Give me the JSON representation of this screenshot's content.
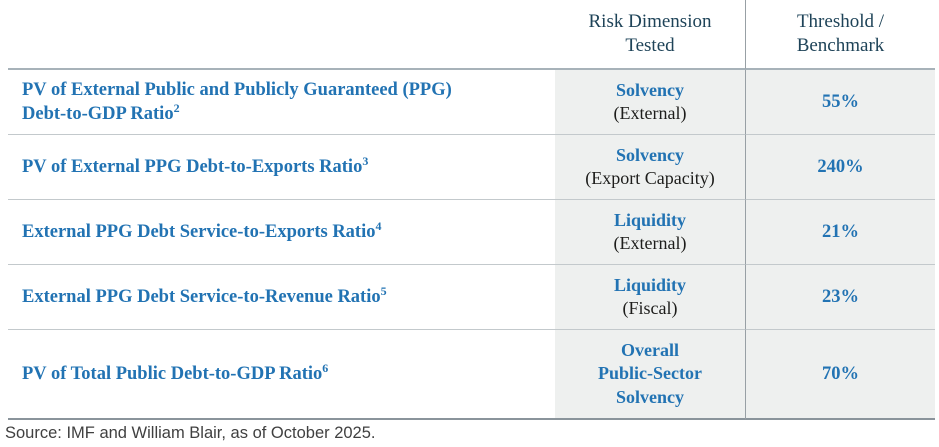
{
  "colors": {
    "accent_blue": "#2273b3",
    "header_navy": "#1e4358",
    "body_text": "#1d1d1b",
    "column_fill": "#eef0ef",
    "header_rule": "#a7b2b9",
    "row_rule": "#c3c9cc",
    "bottom_rule": "#8a949b",
    "source_text": "#404040"
  },
  "table": {
    "header": {
      "risk_dimension": "Risk Dimension\nTested",
      "threshold": "Threshold /\nBenchmark"
    },
    "rows": [
      {
        "metric": "PV of External Public and Publicly Guaranteed (PPG) Debt-to-GDP Ratio",
        "footnote": "2",
        "dimension": "Solvency",
        "qualifier": "(External)",
        "threshold": "55%"
      },
      {
        "metric": "PV of External PPG Debt-to-Exports Ratio",
        "footnote": "3",
        "dimension": "Solvency",
        "qualifier": "(Export Capacity)",
        "threshold": "240%"
      },
      {
        "metric": "External PPG Debt Service-to-Exports Ratio",
        "footnote": "4",
        "dimension": "Liquidity",
        "qualifier": "(External)",
        "threshold": "21%"
      },
      {
        "metric": "External PPG Debt Service-to-Revenue Ratio",
        "footnote": "5",
        "dimension": "Liquidity",
        "qualifier": "(Fiscal)",
        "threshold": "23%"
      },
      {
        "metric": "PV of Total Public Debt-to-GDP Ratio",
        "footnote": "6",
        "dimension": "Overall\nPublic-Sector\nSolvency",
        "qualifier": "",
        "threshold": "70%"
      }
    ]
  },
  "footer": {
    "source": "Source: IMF and William Blair, as of October 2025."
  }
}
